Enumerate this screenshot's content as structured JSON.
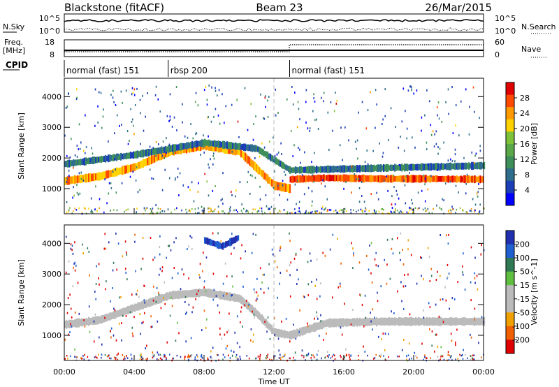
{
  "header": {
    "station": "Blackstone (fitACF)",
    "beam": "Beam 23",
    "date": "26/Mar/2015"
  },
  "strip_labels": {
    "nsky": "N.Sky",
    "nsearch": "N.Search",
    "freq_line1": "Freq.",
    "freq_line2": "[MHz]",
    "nave": "Nave",
    "cpid": "CPID"
  },
  "cpid_segments": [
    {
      "label": "normal (fast) 151",
      "start_h": 0.0,
      "end_h": 5.95
    },
    {
      "label": "rbsp 200",
      "start_h": 5.95,
      "end_h": 12.9
    },
    {
      "label": "normal (fast) 151",
      "start_h": 12.9,
      "end_h": 24.0
    }
  ],
  "noise_axis": {
    "left_ticks": [
      "10^5",
      "10^0"
    ],
    "right_ticks": [
      "10^5",
      "10^0"
    ]
  },
  "freq_axis": {
    "left_ticks": [
      "18",
      "8"
    ],
    "right_ticks": [
      "60",
      "0"
    ]
  },
  "colors": {
    "power_scale": [
      "#0000ff",
      "#1c3fb8",
      "#2f6e8c",
      "#3f8f5a",
      "#5aa848",
      "#7ec23a",
      "#ffd200",
      "#ff9a00",
      "#ff4a00",
      "#e00000"
    ],
    "velocity_scale": [
      "#2030b0",
      "#1f5fd0",
      "#2f7a55",
      "#5fc040",
      "#bbbbbb",
      "#bbbbbb",
      "#f0a000",
      "#f06000",
      "#e00000"
    ],
    "ground_scatter": "#bdbdbd"
  },
  "chart_data": [
    {
      "type": "heatmap",
      "panel": "power",
      "xlabel": "",
      "ylabel": "Slant Range [km]",
      "xlim": [
        0,
        24
      ],
      "ylim": [
        180,
        4600
      ],
      "y_ticks": [
        1000,
        2000,
        3000,
        4000
      ],
      "colorbar": {
        "label": "Power [dB]",
        "ticks": [
          "28",
          "24",
          "20",
          "16",
          "12",
          "8",
          "4"
        ],
        "range": [
          0,
          30
        ]
      },
      "bands": [
        {
          "name": "",
          "x": [
            0,
            2,
            4,
            6,
            8,
            10,
            11,
            12,
            12.9
          ],
          "y": [
            1250,
            1400,
            1700,
            2200,
            2400,
            2200,
            1650,
            1100,
            1000
          ],
          "value_db": 22
        },
        {
          "name": "",
          "x": [
            12.9,
            15,
            18,
            21,
            24
          ],
          "y": [
            1300,
            1350,
            1320,
            1320,
            1300
          ],
          "value_db": 25
        },
        {
          "name": "",
          "x": [
            0,
            4,
            8,
            11,
            12.9,
            24
          ],
          "y": [
            1800,
            2100,
            2500,
            2300,
            1600,
            1750
          ],
          "value_db": 8
        }
      ]
    },
    {
      "type": "heatmap",
      "panel": "velocity",
      "xlabel": "Time UT",
      "ylabel": "Slant Range [km]",
      "xlim": [
        0,
        24
      ],
      "ylim": [
        180,
        4600
      ],
      "x_ticks": [
        "00:00",
        "04:00",
        "08:00",
        "12:00",
        "16:00",
        "20:00",
        "00:00"
      ],
      "y_ticks": [
        1000,
        2000,
        3000,
        4000
      ],
      "colorbar": {
        "label": "Velocity [m s^-1]",
        "ticks": [
          "200",
          "100",
          "50",
          "15",
          "-15",
          "-50",
          "-100",
          "-200"
        ],
        "range": [
          -250,
          250
        ]
      },
      "bands": [
        {
          "name": "",
          "x": [
            0,
            2,
            4,
            6,
            8,
            10,
            11,
            12,
            12.9,
            15,
            18,
            21,
            24
          ],
          "y": [
            1350,
            1500,
            1900,
            2300,
            2400,
            2200,
            1700,
            1100,
            1000,
            1400,
            1450,
            1450,
            1450
          ],
          "value_ms": 0
        },
        {
          "name": "",
          "x": [
            8,
            9,
            10
          ],
          "y": [
            4100,
            3900,
            4200
          ],
          "value_ms": 150
        }
      ]
    }
  ]
}
